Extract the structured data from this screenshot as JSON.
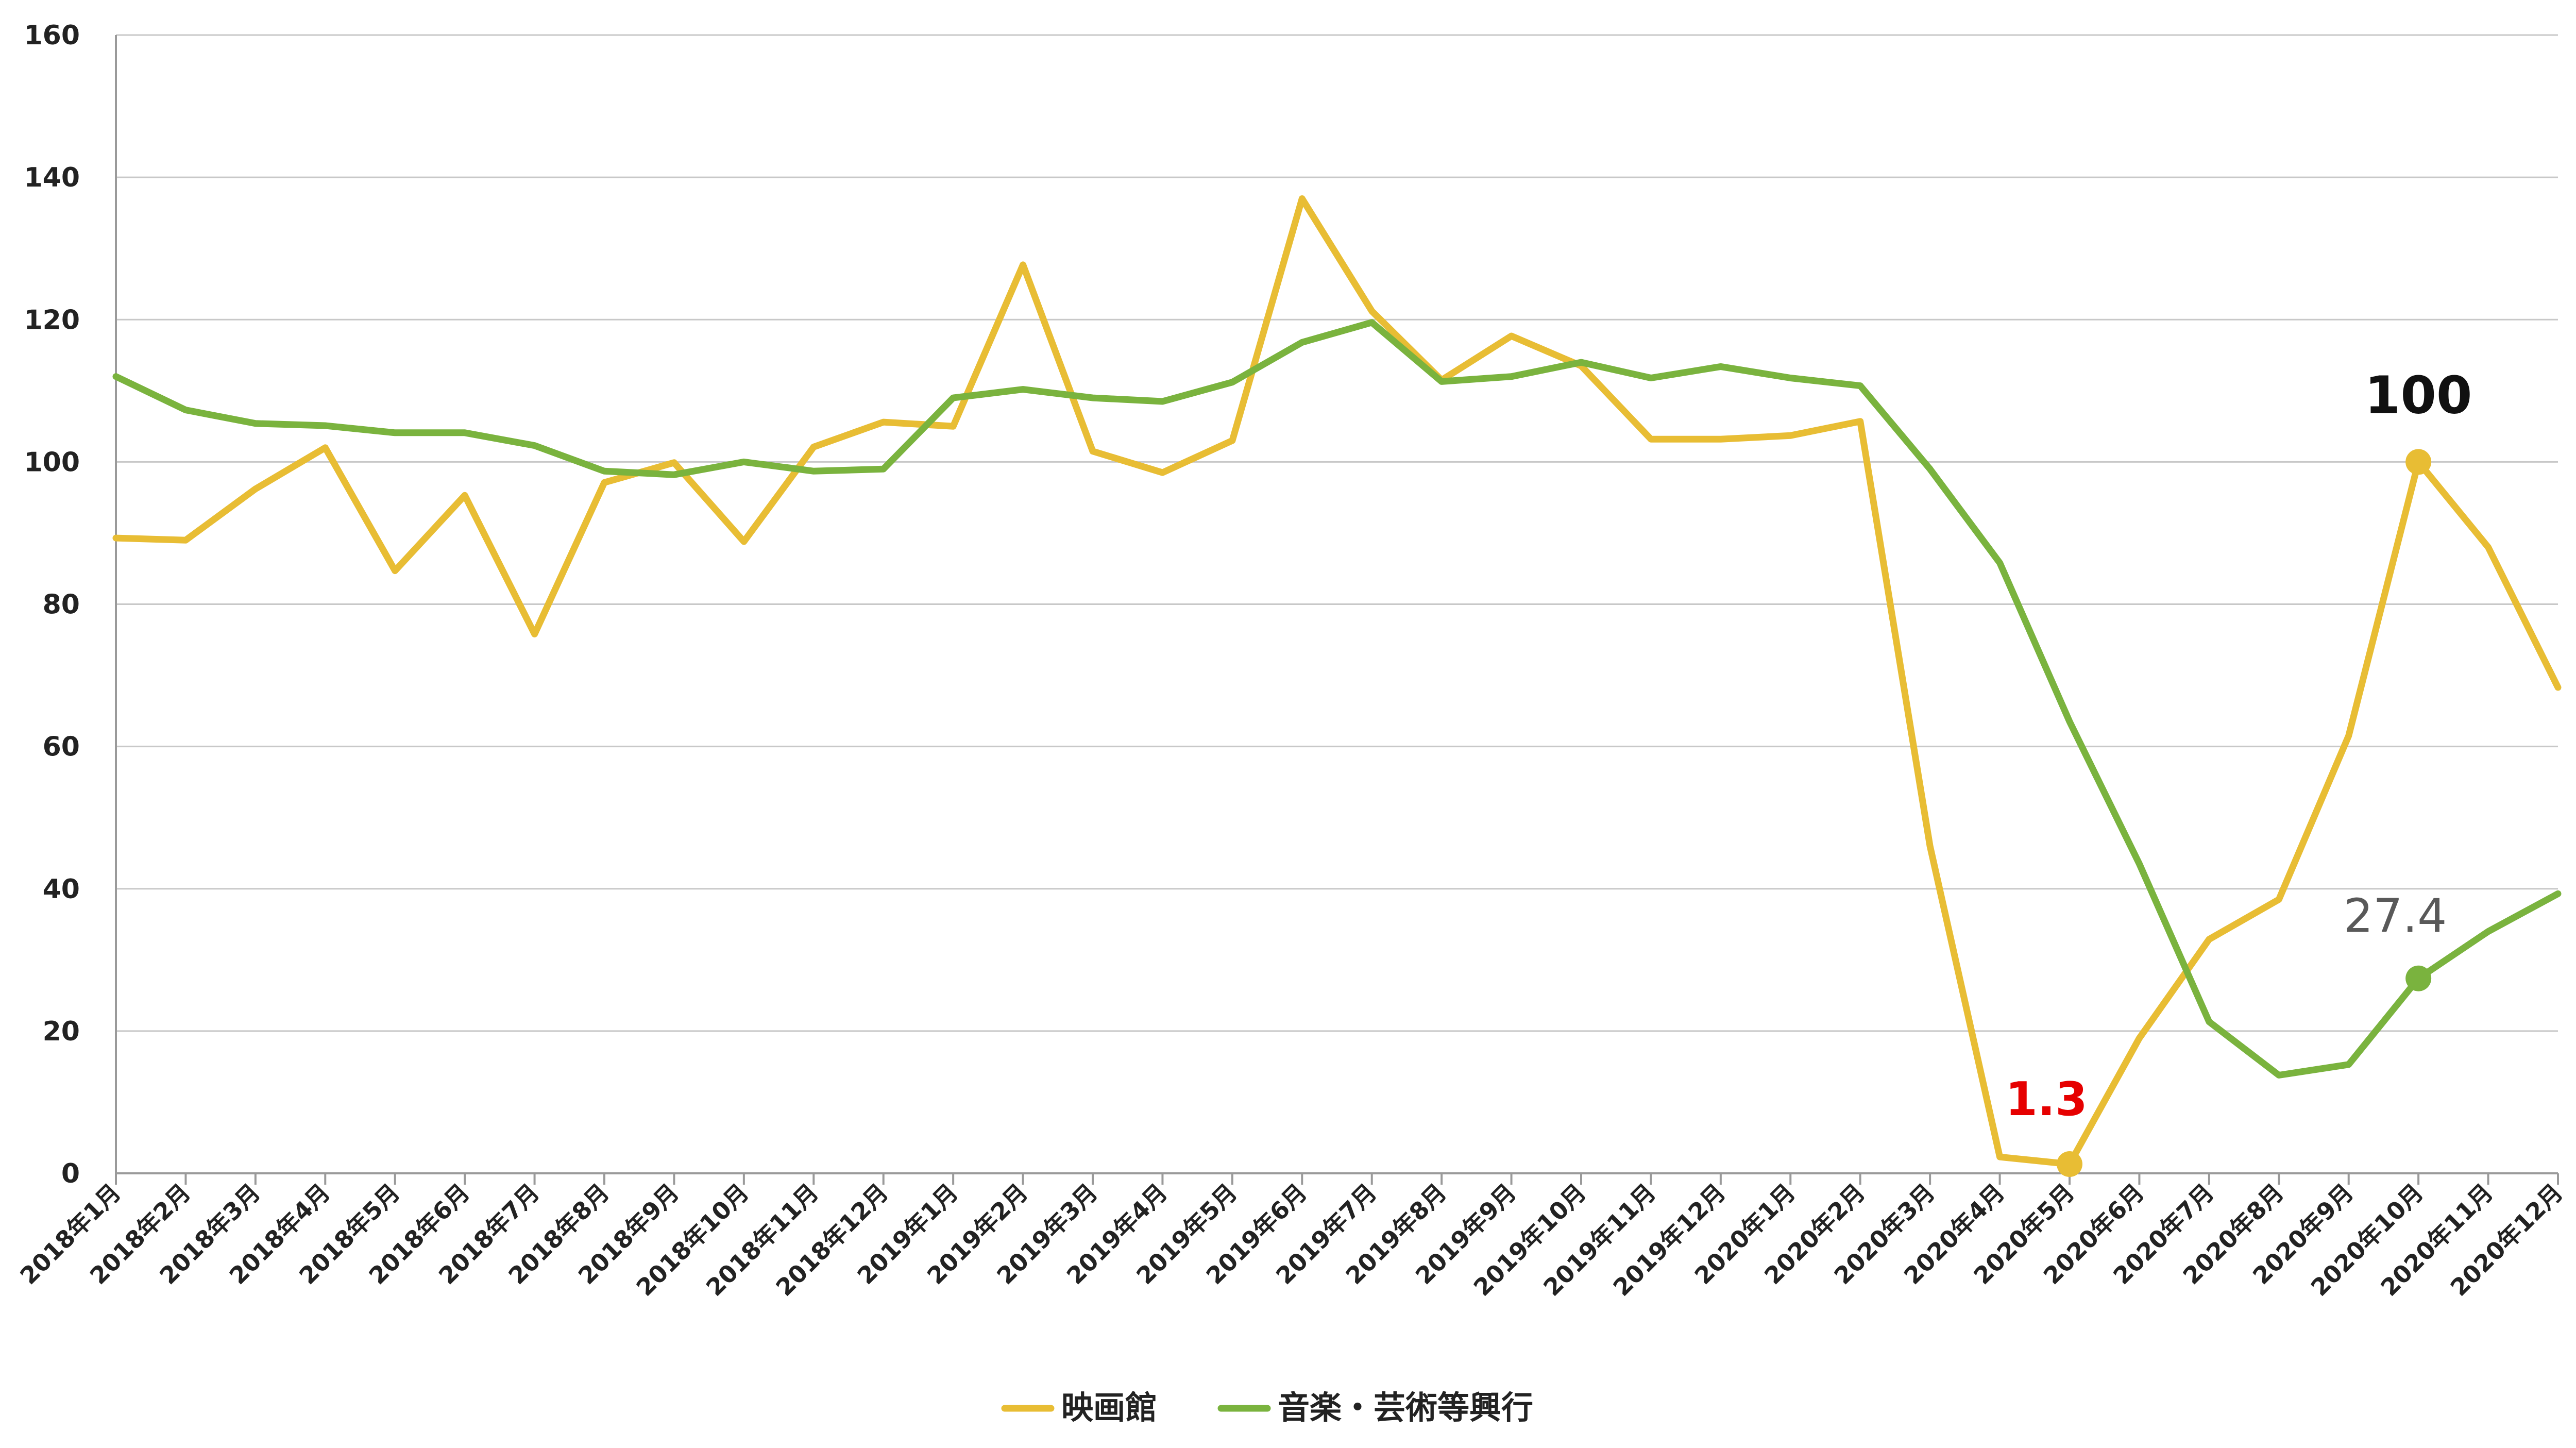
{
  "chart_data": {
    "type": "line",
    "title": "",
    "xlabel": "",
    "ylabel": "",
    "ylim": [
      0,
      160
    ],
    "yticks": [
      0,
      20,
      40,
      60,
      80,
      100,
      120,
      140,
      160
    ],
    "grid": true,
    "legend_position": "bottom",
    "categories": [
      "2018年1月",
      "2018年2月",
      "2018年3月",
      "2018年4月",
      "2018年5月",
      "2018年6月",
      "2018年7月",
      "2018年8月",
      "2018年9月",
      "2018年10月",
      "2018年11月",
      "2018年12月",
      "2019年1月",
      "2019年2月",
      "2019年3月",
      "2019年4月",
      "2019年5月",
      "2019年6月",
      "2019年7月",
      "2019年8月",
      "2019年9月",
      "2019年10月",
      "2019年11月",
      "2019年12月",
      "2020年1月",
      "2020年2月",
      "2020年3月",
      "2020年4月",
      "2020年5月",
      "2020年6月",
      "2020年7月",
      "2020年8月",
      "2020年9月",
      "2020年10月",
      "2020年11月",
      "2020年12月"
    ],
    "series": [
      {
        "name": "映画館",
        "color": "#e8bd34",
        "values": [
          89.3,
          89.0,
          96.2,
          102.0,
          84.7,
          95.3,
          75.8,
          97.1,
          99.9,
          88.8,
          102.1,
          105.6,
          105.0,
          127.7,
          101.5,
          98.5,
          103.0,
          137.0,
          121.2,
          111.5,
          117.7,
          113.5,
          103.2,
          103.2,
          103.7,
          105.7,
          46.0,
          2.3,
          1.3,
          19.0,
          32.9,
          38.5,
          61.5,
          100.0,
          88.0,
          68.3
        ]
      },
      {
        "name": "音楽・芸術等興行",
        "color": "#7ab33e",
        "values": [
          112.0,
          107.3,
          105.4,
          105.1,
          104.1,
          104.1,
          102.3,
          98.7,
          98.2,
          100.0,
          98.7,
          99.0,
          109.0,
          110.2,
          109.0,
          108.5,
          111.2,
          116.8,
          119.6,
          111.3,
          112.0,
          114.0,
          111.8,
          113.4,
          111.8,
          110.7,
          99.0,
          85.8,
          63.5,
          43.5,
          21.3,
          13.8,
          15.3,
          27.4,
          34.0,
          39.3
        ]
      }
    ],
    "annotations": [
      {
        "series": 0,
        "index": 28,
        "text": "1.3",
        "color": "#e60000"
      },
      {
        "series": 0,
        "index": 33,
        "text": "100",
        "color": "#111111"
      },
      {
        "series": 1,
        "index": 33,
        "text": "27.4",
        "color": "#595959"
      }
    ]
  }
}
